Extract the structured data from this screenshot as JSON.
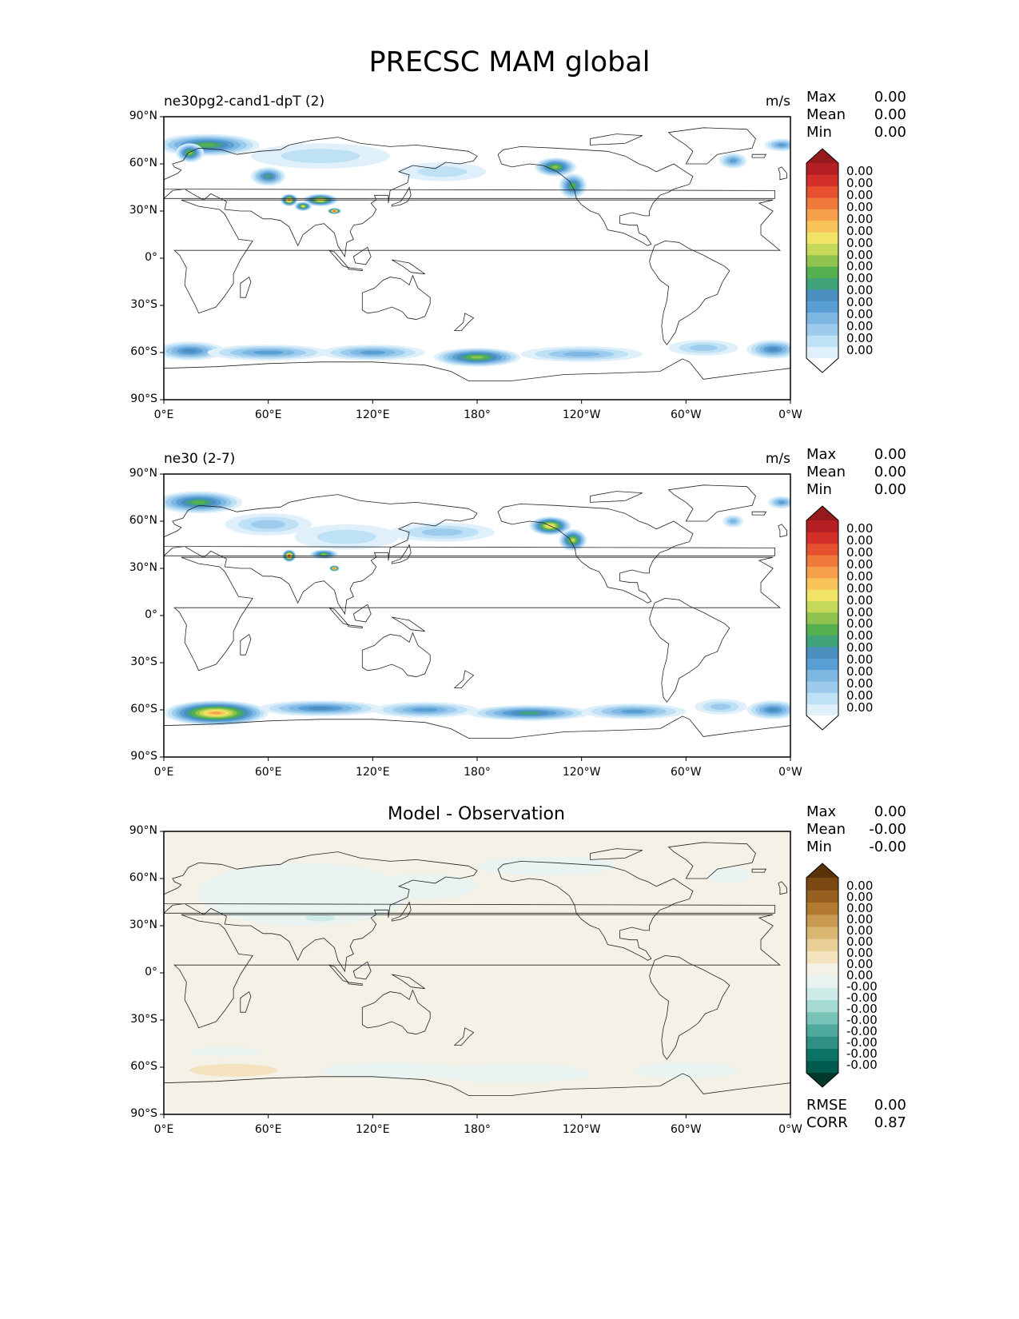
{
  "title": "PRECSC MAM global",
  "chart_data": [
    {
      "type": "heatmap",
      "panel": "test",
      "title": "ne30pg2-cand1-dpT (2)",
      "units": "m/s",
      "stats": {
        "max_label": "Max",
        "max": "0.00",
        "mean_label": "Mean",
        "mean": "0.00",
        "min_label": "Min",
        "min": "0.00"
      },
      "x_ticks": [
        "0°E",
        "60°E",
        "120°E",
        "180°",
        "120°W",
        "60°W",
        "0°W"
      ],
      "y_ticks": [
        "90°N",
        "60°N",
        "30°N",
        "0°",
        "30°S",
        "60°S",
        "90°S"
      ],
      "xlim": [
        0,
        360
      ],
      "ylim": [
        -90,
        90
      ],
      "colorbar_labels": [
        "0.00",
        "0.00",
        "0.00",
        "0.00",
        "0.00",
        "0.00",
        "0.00",
        "0.00",
        "0.00",
        "0.00",
        "0.00",
        "0.00",
        "0.00",
        "0.00",
        "0.00",
        "0.00"
      ],
      "colorbar_colors": [
        "#ffffff",
        "#dff0fb",
        "#bfe1f6",
        "#9ccbed",
        "#7fb7e3",
        "#5a9fd4",
        "#4a8fbf",
        "#41a37a",
        "#55b050",
        "#8fc24e",
        "#c5d95b",
        "#f1e466",
        "#f9c55a",
        "#f6a04c",
        "#f07a3c",
        "#e6502e",
        "#d23028",
        "#b51f24",
        "#951a1c"
      ]
    },
    {
      "type": "heatmap",
      "panel": "reference",
      "title": "ne30 (2-7)",
      "units": "m/s",
      "stats": {
        "max_label": "Max",
        "max": "0.00",
        "mean_label": "Mean",
        "mean": "0.00",
        "min_label": "Min",
        "min": "0.00"
      },
      "x_ticks": [
        "0°E",
        "60°E",
        "120°E",
        "180°",
        "120°W",
        "60°W",
        "0°W"
      ],
      "y_ticks": [
        "90°N",
        "60°N",
        "30°N",
        "0°",
        "30°S",
        "60°S",
        "90°S"
      ],
      "xlim": [
        0,
        360
      ],
      "ylim": [
        -90,
        90
      ],
      "colorbar_labels": [
        "0.00",
        "0.00",
        "0.00",
        "0.00",
        "0.00",
        "0.00",
        "0.00",
        "0.00",
        "0.00",
        "0.00",
        "0.00",
        "0.00",
        "0.00",
        "0.00",
        "0.00",
        "0.00"
      ],
      "colorbar_colors": [
        "#ffffff",
        "#dff0fb",
        "#bfe1f6",
        "#9ccbed",
        "#7fb7e3",
        "#5a9fd4",
        "#4a8fbf",
        "#41a37a",
        "#55b050",
        "#8fc24e",
        "#c5d95b",
        "#f1e466",
        "#f9c55a",
        "#f6a04c",
        "#f07a3c",
        "#e6502e",
        "#d23028",
        "#b51f24",
        "#951a1c"
      ]
    },
    {
      "type": "heatmap",
      "panel": "difference",
      "title": "Model - Observation",
      "units": "",
      "stats": {
        "max_label": "Max",
        "max": "0.00",
        "mean_label": "Mean",
        "mean": "-0.00",
        "min_label": "Min",
        "min": "-0.00"
      },
      "metrics": {
        "rmse_label": "RMSE",
        "rmse": "0.00",
        "corr_label": "CORR",
        "corr": "0.87"
      },
      "x_ticks": [
        "0°E",
        "60°E",
        "120°E",
        "180°",
        "120°W",
        "60°W",
        "0°W"
      ],
      "y_ticks": [
        "90°N",
        "60°N",
        "30°N",
        "0°",
        "30°S",
        "60°S",
        "90°S"
      ],
      "xlim": [
        0,
        360
      ],
      "ylim": [
        -90,
        90
      ],
      "colorbar_labels": [
        "0.00",
        "0.00",
        "0.00",
        "0.00",
        "0.00",
        "0.00",
        "0.00",
        "0.00",
        "0.00",
        "-0.00",
        "-0.00",
        "-0.00",
        "-0.00",
        "-0.00",
        "-0.00",
        "-0.00",
        "-0.00"
      ],
      "colorbar_colors": [
        "#00392c",
        "#005a4d",
        "#0c7466",
        "#2e8f82",
        "#4ea99c",
        "#77c3b8",
        "#a5dad2",
        "#cdebe7",
        "#e8f3f2",
        "#f4f1e7",
        "#f3e2bd",
        "#e8cf98",
        "#d9b773",
        "#c99a52",
        "#b27a30",
        "#956020",
        "#7a4812",
        "#5b3208"
      ]
    }
  ]
}
